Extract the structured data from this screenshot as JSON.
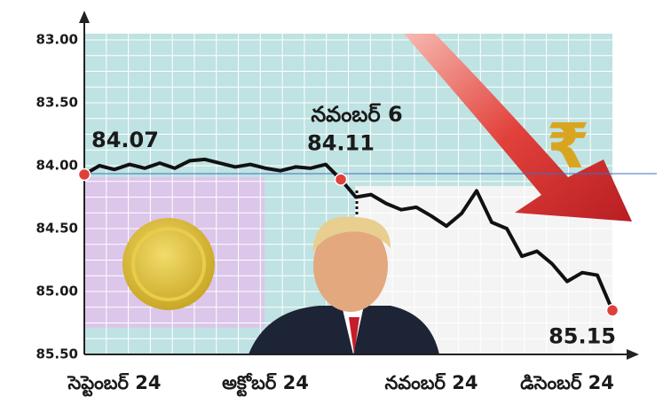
{
  "chart_data": {
    "type": "line",
    "categories": [
      null,
      null,
      "సెప్టెంబర్ 24",
      null,
      null,
      null,
      null,
      null,
      null,
      null,
      null,
      null,
      "అక్టోబర్ 24",
      null,
      null,
      null,
      null,
      null,
      null,
      null,
      null,
      null,
      null,
      "నవంబర్ 24",
      null,
      null,
      null,
      null,
      null,
      null,
      null,
      null,
      "డిసెంబర్ 24",
      null,
      null,
      null
    ],
    "values": [
      84.07,
      84.0,
      84.03,
      83.99,
      84.02,
      83.98,
      84.02,
      83.96,
      83.95,
      83.98,
      84.01,
      83.99,
      84.02,
      84.04,
      84.01,
      84.02,
      83.99,
      84.11,
      84.25,
      84.23,
      84.3,
      84.35,
      84.33,
      84.4,
      84.48,
      84.38,
      84.2,
      84.45,
      84.5,
      84.72,
      84.68,
      84.78,
      84.92,
      84.85,
      84.87,
      85.15
    ],
    "color": "#111111",
    "marker_color": "#e0403a",
    "ylim": [
      85.5,
      83.0
    ],
    "yticks": [
      {
        "value": 83.0,
        "label": "83.00"
      },
      {
        "value": 83.5,
        "label": "83.50"
      },
      {
        "value": 84.0,
        "label": "84.00"
      },
      {
        "value": 84.5,
        "label": "84.50"
      },
      {
        "value": 85.0,
        "label": "85.00"
      },
      {
        "value": 85.5,
        "label": "85.50"
      }
    ],
    "grid": true,
    "annotation": "నవంబర్ 6"
  }
}
